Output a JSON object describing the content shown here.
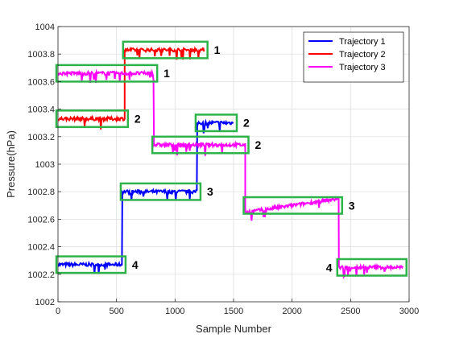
{
  "chart_data": {
    "type": "line",
    "xlabel": "Sample Number",
    "ylabel": "Pressure(hPa)",
    "xlim": [
      0,
      3000
    ],
    "ylim": [
      1002,
      1004
    ],
    "xticks": [
      "0",
      "500",
      "1000",
      "1500",
      "2000",
      "2500",
      "3000"
    ],
    "yticks": [
      "1002",
      "1002.2",
      "1002.4",
      "1002.6",
      "1002.8",
      "1003",
      "1003.2",
      "1003.4",
      "1003.6",
      "1003.8",
      "1004"
    ],
    "grid": true,
    "legend_position": "top-right",
    "series": [
      {
        "name": "Trajectory 1",
        "color": "#0000ff",
        "segments": [
          {
            "x": [
              0,
              550
            ],
            "level": 1002.27,
            "label": "4"
          },
          {
            "x": [
              550,
              1190
            ],
            "level": 1002.8,
            "label": "3"
          },
          {
            "x": [
              1190,
              1500
            ],
            "level": 1003.3,
            "label": "2"
          }
        ]
      },
      {
        "name": "Trajectory 2",
        "color": "#ff0000",
        "segments": [
          {
            "x": [
              0,
              570
            ],
            "level": 1003.33,
            "label": "2"
          },
          {
            "x": [
              570,
              1250
            ],
            "level": 1003.83,
            "label": "1"
          }
        ]
      },
      {
        "name": "Trajectory 3",
        "color": "#ff00ff",
        "segments": [
          {
            "x": [
              0,
              820
            ],
            "level": 1003.66,
            "label": "1"
          },
          {
            "x": [
              820,
              1600
            ],
            "level": 1003.14,
            "label": "2"
          },
          {
            "x": [
              1600,
              2400
            ],
            "level": 1002.7,
            "label": "3"
          },
          {
            "x": [
              2400,
              2950
            ],
            "level": 1002.25,
            "label": "4"
          }
        ]
      }
    ]
  },
  "box_color": "#2db34a"
}
